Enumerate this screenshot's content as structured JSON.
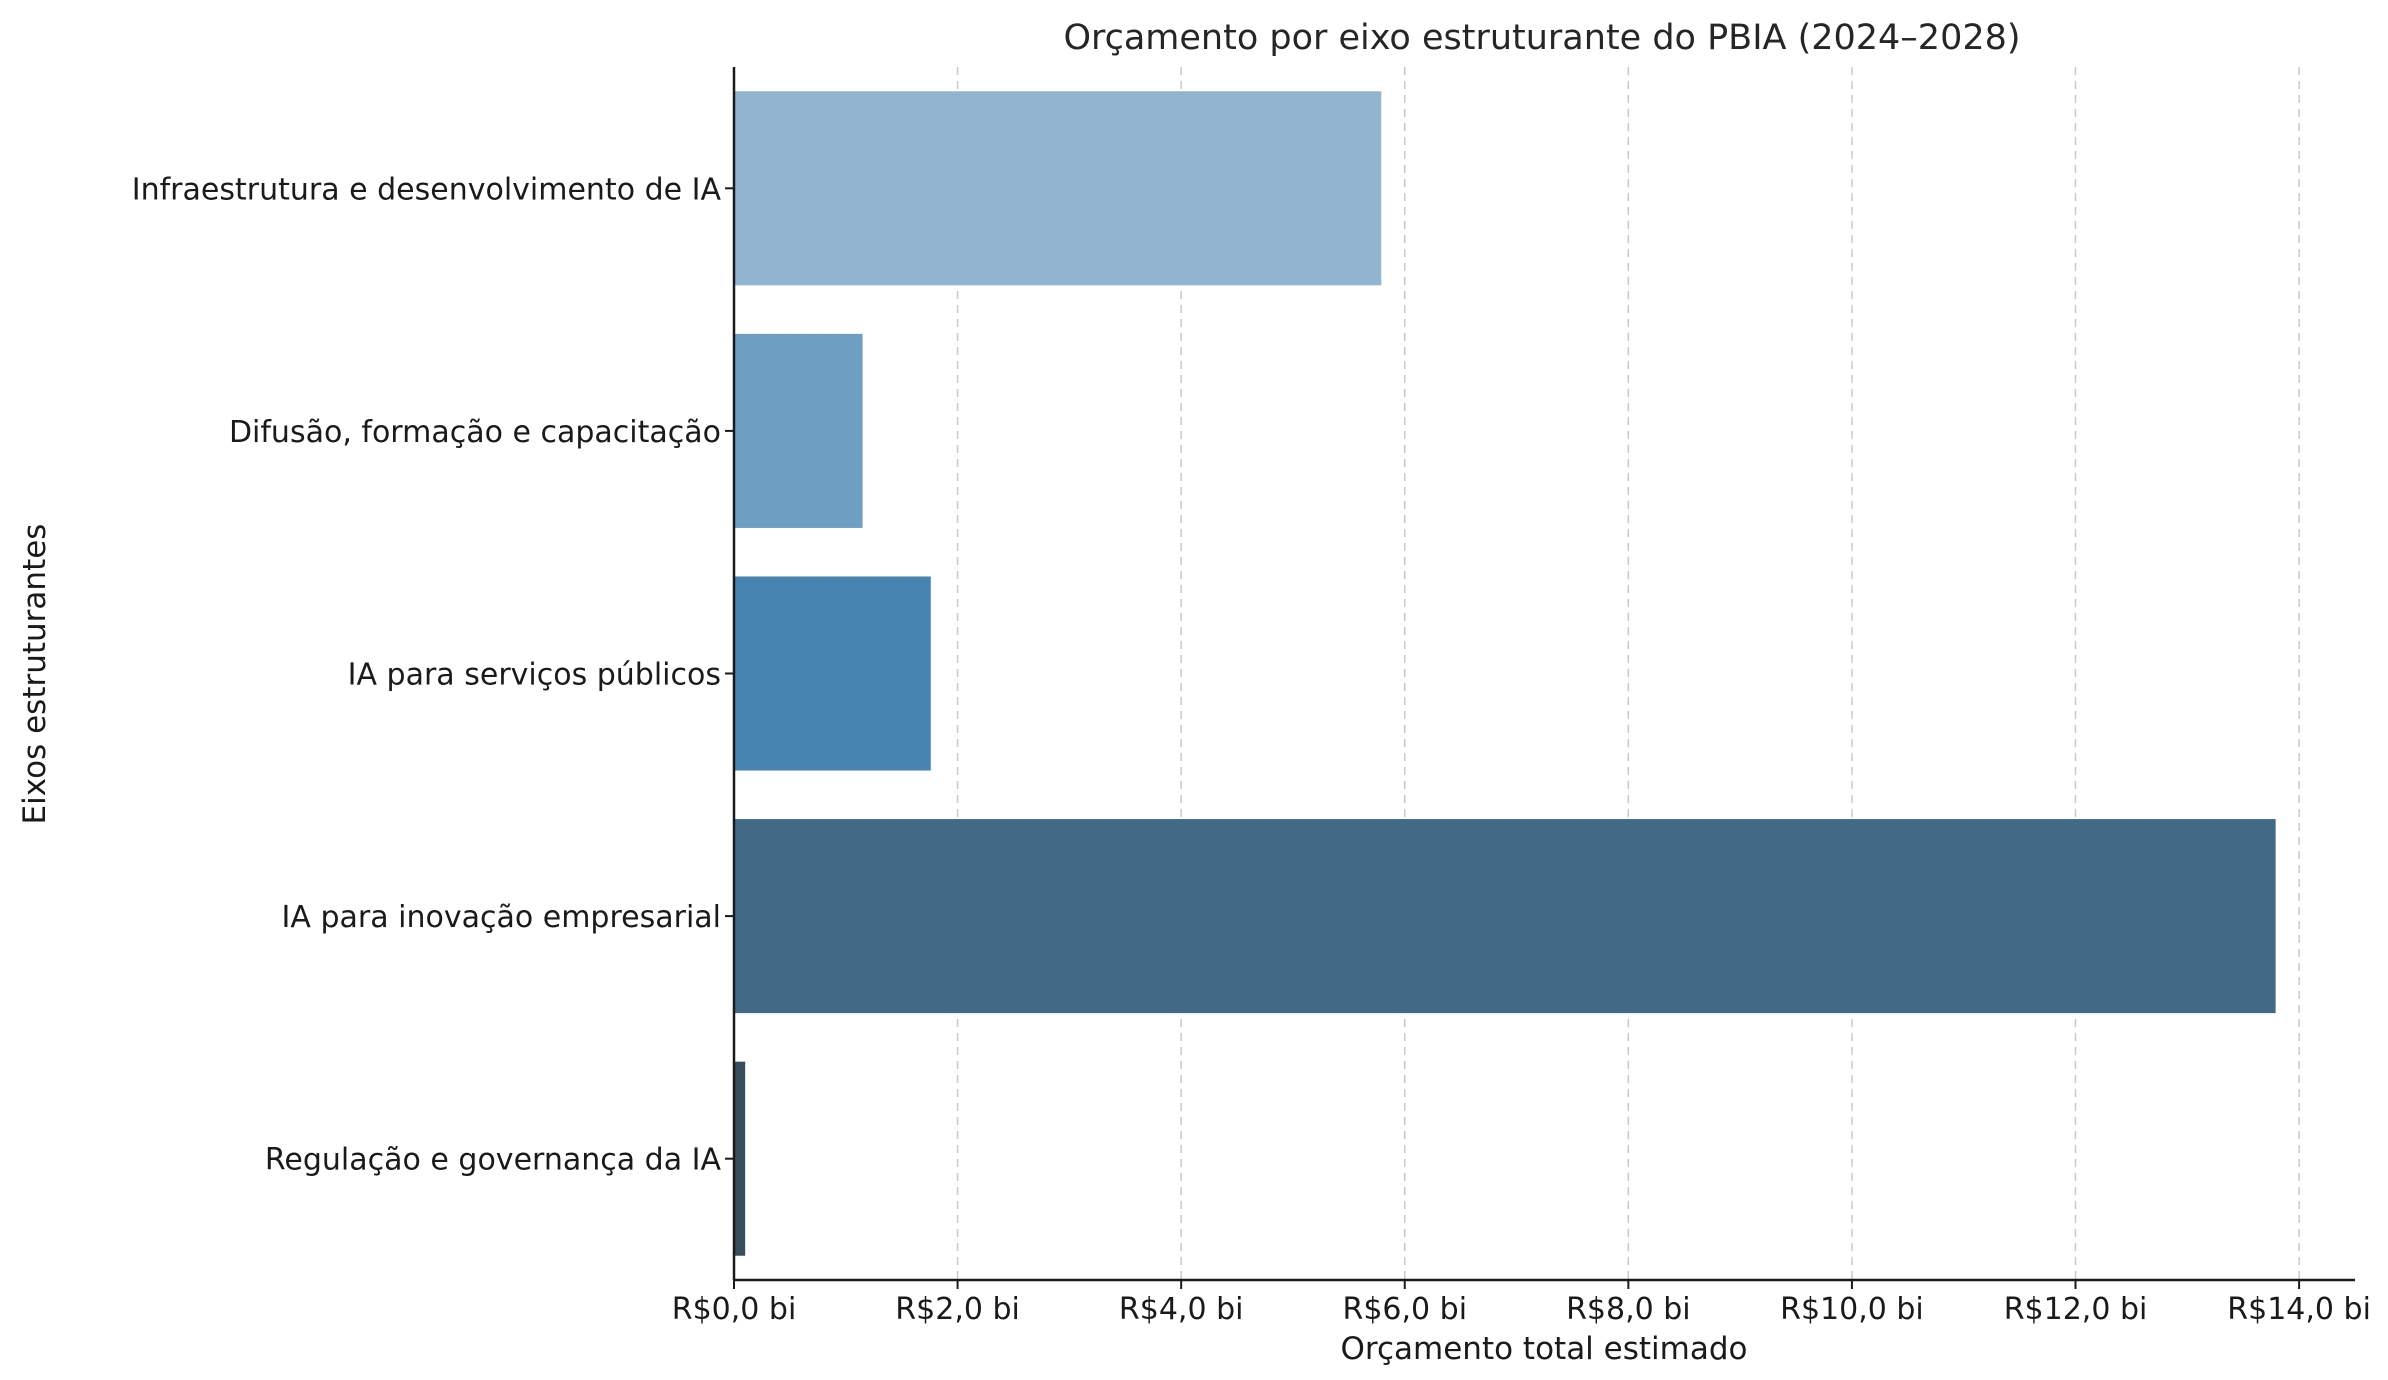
{
  "chart_data": {
    "type": "bar",
    "orientation": "horizontal",
    "title": "Orçamento por eixo estruturante do PBIA (2024–2028)",
    "xlabel": "Orçamento total estimado",
    "ylabel": "Eixos estruturantes",
    "xlim": [
      0,
      14.5
    ],
    "x_ticks": [
      0,
      2,
      4,
      6,
      8,
      10,
      12,
      14
    ],
    "x_tick_labels": [
      "R$0,0 bi",
      "R$2,0 bi",
      "R$4,0 bi",
      "R$6,0 bi",
      "R$8,0 bi",
      "R$10,0 bi",
      "R$12,0 bi",
      "R$14,0 bi"
    ],
    "grid": "vertical dashed",
    "categories": [
      "Infraestrutura e desenvolvimento de IA",
      "Difusão, formação e capacitação",
      "IA para serviços públicos",
      "IA para inovação empresarial",
      "Regulação e governança da IA"
    ],
    "values": [
      5.79,
      1.15,
      1.76,
      13.79,
      0.1
    ],
    "colors": [
      "#91b5cf",
      "#6e9fc2",
      "#4884b1",
      "#426a87",
      "#384d5c"
    ]
  }
}
